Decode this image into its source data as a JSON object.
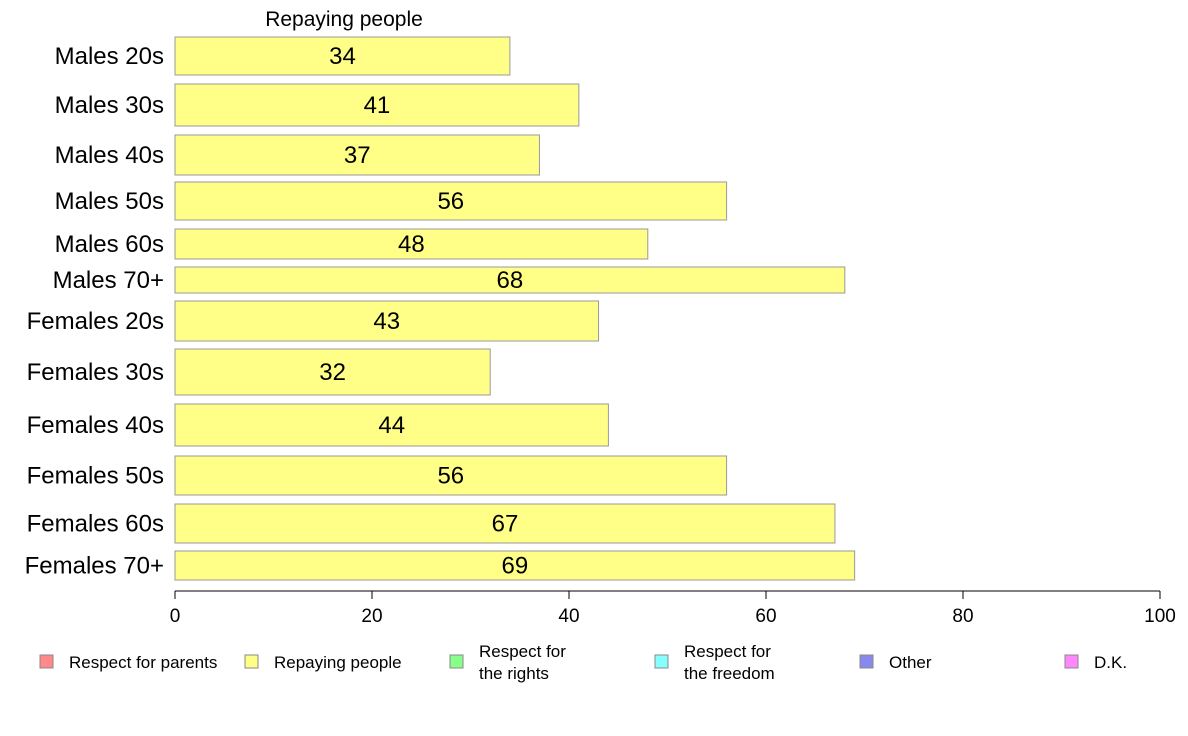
{
  "chart_data": {
    "type": "bar",
    "orientation": "horizontal",
    "series_title": "Repaying people",
    "categories": [
      "Males 20s",
      "Males 30s",
      "Males 40s",
      "Males 50s",
      "Males 60s",
      "Males 70+",
      "Females 20s",
      "Females 30s",
      "Females 40s",
      "Females 50s",
      "Females 60s",
      "Females 70+"
    ],
    "values": [
      34,
      41,
      37,
      56,
      48,
      68,
      43,
      32,
      44,
      56,
      67,
      69
    ],
    "data_labels": [
      "34",
      "41",
      "37",
      "56",
      "48",
      "68",
      "43",
      "32",
      "44",
      "56",
      "67",
      "69"
    ],
    "xlim": [
      0,
      100
    ],
    "xticks": [
      0,
      20,
      40,
      60,
      80,
      100
    ],
    "xtick_labels": [
      "0",
      "20",
      "40",
      "60",
      "80",
      "100"
    ],
    "bar_color": "#ffff88",
    "bar_stroke": "#999999",
    "grid": false,
    "legend_position": "bottom",
    "legend": [
      {
        "lines": [
          "Respect for parents"
        ],
        "color": "#ff8888"
      },
      {
        "lines": [
          "Repaying people"
        ],
        "color": "#ffff88"
      },
      {
        "lines": [
          "Respect for",
          "the rights"
        ],
        "color": "#88ff88"
      },
      {
        "lines": [
          "Respect for",
          "the freedom"
        ],
        "color": "#88ffff"
      },
      {
        "lines": [
          "Other"
        ],
        "color": "#8888ee"
      },
      {
        "lines": [
          "D.K."
        ],
        "color": "#ff88ff"
      }
    ]
  }
}
